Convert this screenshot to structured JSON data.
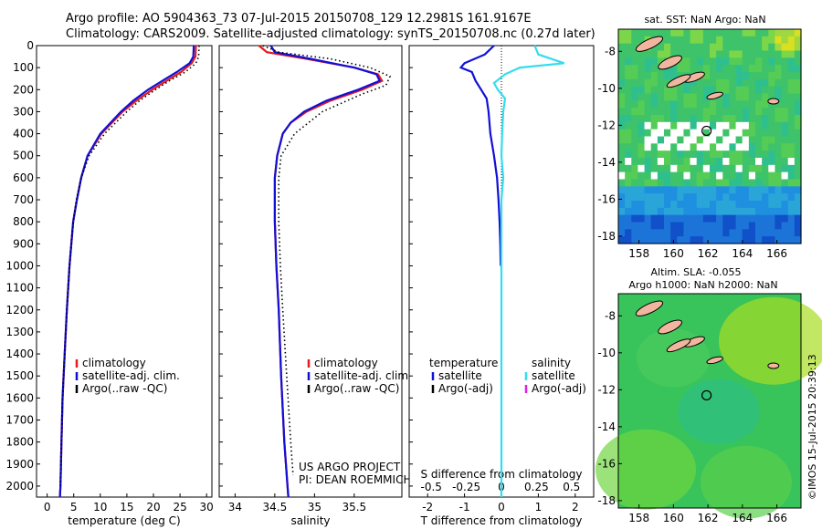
{
  "header": {
    "line1": "Argo profile: AO 5904363_73 07-Jul-2015 20150708_129 12.2981S 161.9167E",
    "line2": "Climatology: CARS2009. Satellite-adjusted climatology: synTS_20150708.nc (0.27d later)"
  },
  "copyright": "©IMOS 15-Jul-2015 20:39:13",
  "colors": {
    "climatology": "#e8191c",
    "satellite": "#1010d8",
    "argo": "#000000",
    "s_satellite": "#33ddee",
    "s_argo": "#dd22dd"
  },
  "chart_data": [
    {
      "type": "line",
      "xlabel": "temperature (deg C)",
      "ylabel": "",
      "xticks": [
        0,
        5,
        10,
        15,
        20,
        25,
        30
      ],
      "xlim": [
        -2,
        31
      ],
      "yticks": [
        0,
        100,
        200,
        300,
        400,
        500,
        600,
        700,
        800,
        900,
        1000,
        1100,
        1200,
        1300,
        1400,
        1500,
        1600,
        1700,
        1800,
        1900,
        2000
      ],
      "ylim": [
        2050,
        0
      ],
      "legend": [
        "climatology",
        "satellite-adj. clim.",
        "Argo(..raw -QC)"
      ],
      "series": [
        {
          "name": "climatology",
          "style": "solid",
          "y": [
            0,
            50,
            80,
            120,
            160,
            200,
            250,
            300,
            400,
            500,
            600,
            700,
            800,
            1000,
            1200,
            1400,
            1600,
            1800,
            2000,
            2050
          ],
          "x": [
            28.0,
            27.9,
            27.2,
            25.2,
            22.5,
            19.8,
            16.8,
            14.2,
            10.2,
            7.6,
            6.4,
            5.6,
            4.9,
            4.2,
            3.7,
            3.3,
            2.9,
            2.7,
            2.5,
            2.4
          ]
        },
        {
          "name": "satellite-adj. clim.",
          "style": "solid",
          "y": [
            0,
            50,
            80,
            120,
            160,
            200,
            250,
            300,
            400,
            500,
            600,
            700,
            800,
            1000,
            1200,
            1400,
            1600,
            1800,
            2000,
            2050
          ],
          "x": [
            27.6,
            27.5,
            26.8,
            24.4,
            21.7,
            19.0,
            16.2,
            13.9,
            10.0,
            7.6,
            6.4,
            5.6,
            4.9,
            4.2,
            3.7,
            3.3,
            2.9,
            2.7,
            2.5,
            2.4
          ]
        },
        {
          "name": "Argo(..raw -QC)",
          "style": "dotted",
          "y": [
            0,
            50,
            80,
            120,
            160,
            200,
            250,
            300,
            400,
            500,
            600,
            700,
            800,
            1000,
            1200,
            1400,
            1600,
            1800,
            2000
          ],
          "x": [
            28.6,
            28.5,
            28.0,
            26.0,
            23.0,
            20.4,
            17.4,
            15.0,
            10.8,
            7.9,
            6.4,
            5.5,
            4.9,
            4.2,
            3.7,
            3.3,
            2.9,
            2.7,
            2.5
          ]
        }
      ]
    },
    {
      "type": "line",
      "xlabel": "salinity",
      "ylabel": "",
      "xticks": [
        34,
        34.5,
        35,
        35.5
      ],
      "xlim": [
        33.8,
        36.1
      ],
      "ylim": [
        2050,
        0
      ],
      "legend": [
        "climatology",
        "satellite-adj. clim.",
        "Argo(..raw -QC)"
      ],
      "annotations": [
        "US ARGO PROJECT",
        "PI: DEAN ROEMMICH"
      ],
      "series": [
        {
          "name": "climatology",
          "style": "solid",
          "y": [
            0,
            30,
            60,
            100,
            130,
            160,
            200,
            250,
            300,
            350,
            400,
            500,
            600,
            800,
            1000,
            1200,
            1500,
            1800,
            2000,
            2050
          ],
          "x": [
            34.3,
            34.4,
            34.9,
            35.5,
            35.8,
            35.85,
            35.6,
            35.2,
            34.9,
            34.7,
            34.6,
            34.53,
            34.5,
            34.5,
            34.52,
            34.55,
            34.58,
            34.62,
            34.66,
            34.67
          ]
        },
        {
          "name": "satellite-adj. clim.",
          "style": "solid",
          "y": [
            0,
            30,
            60,
            100,
            130,
            160,
            200,
            250,
            300,
            350,
            400,
            500,
            600,
            800,
            1000,
            1200,
            1500,
            1800,
            2000,
            2050
          ],
          "x": [
            34.45,
            34.5,
            34.95,
            35.5,
            35.78,
            35.82,
            35.55,
            35.15,
            34.87,
            34.7,
            34.6,
            34.53,
            34.5,
            34.5,
            34.52,
            34.55,
            34.58,
            34.62,
            34.66,
            34.67
          ]
        },
        {
          "name": "Argo(..raw -QC)",
          "style": "dotted",
          "y": [
            0,
            30,
            60,
            100,
            140,
            180,
            220,
            300,
            400,
            500,
            600,
            800,
            1000,
            1200,
            1500,
            1800,
            1950
          ],
          "x": [
            34.35,
            34.55,
            35.2,
            35.7,
            35.95,
            35.9,
            35.6,
            35.1,
            34.75,
            34.58,
            34.55,
            34.55,
            34.57,
            34.6,
            34.65,
            34.7,
            34.73
          ]
        }
      ]
    },
    {
      "type": "line",
      "xlabel": "T difference from climatology",
      "x2label": "S difference from climatology",
      "xticks": [
        -2,
        -1,
        0,
        1,
        2
      ],
      "x2ticks": [
        "-0.5",
        "-0.25",
        "0",
        "0.25",
        "0.5"
      ],
      "xlim": [
        -2.5,
        2.5
      ],
      "ylim": [
        2050,
        0
      ],
      "legend_temperature_title": "temperature",
      "legend_salinity_title": "salinity",
      "legend": [
        "satellite",
        "Argo(-adj)",
        "satellite",
        "Argo(-adj)"
      ],
      "series": [
        {
          "name": "satellite",
          "style": "solid",
          "color": "#1010d8",
          "y": [
            0,
            40,
            80,
            100,
            120,
            160,
            200,
            240,
            300,
            400,
            500,
            600,
            700,
            800,
            900,
            1000
          ],
          "x": [
            -0.2,
            -0.45,
            -1.0,
            -1.1,
            -0.8,
            -0.7,
            -0.55,
            -0.4,
            -0.35,
            -0.3,
            -0.2,
            -0.12,
            -0.08,
            -0.05,
            -0.03,
            -0.02
          ]
        },
        {
          "name": "satellite",
          "style": "solid",
          "color": "#33ddee",
          "y": [
            0,
            40,
            80,
            100,
            130,
            170,
            200,
            240,
            300,
            400,
            500,
            600,
            700,
            900,
            1200,
            2050
          ],
          "x": [
            0.9,
            1.0,
            1.7,
            0.5,
            0.1,
            -0.2,
            -0.1,
            0.1,
            0.05,
            0.02,
            0.0,
            0.05,
            0.0,
            0.0,
            0.0,
            0.0
          ]
        }
      ]
    },
    {
      "type": "heatmap",
      "title": "sat. SST: NaN Argo: NaN",
      "xticks": [
        158,
        160,
        162,
        164,
        166
      ],
      "yticks": [
        -8,
        -10,
        -12,
        -14,
        -16,
        -18
      ],
      "xlim": [
        156.8,
        167.4
      ],
      "ylim": [
        -18.4,
        -6.8
      ],
      "marker": {
        "lon": 161.92,
        "lat": -12.3
      }
    },
    {
      "type": "heatmap",
      "title": "Altim. SLA: -0.055",
      "subtitle": "Argo h1000: NaN h2000: NaN",
      "xticks": [
        158,
        160,
        162,
        164,
        166
      ],
      "yticks": [
        -8,
        -10,
        -12,
        -14,
        -16,
        -18
      ],
      "xlim": [
        156.8,
        167.4
      ],
      "ylim": [
        -18.4,
        -6.8
      ],
      "marker": {
        "lon": 161.92,
        "lat": -12.3
      }
    }
  ]
}
